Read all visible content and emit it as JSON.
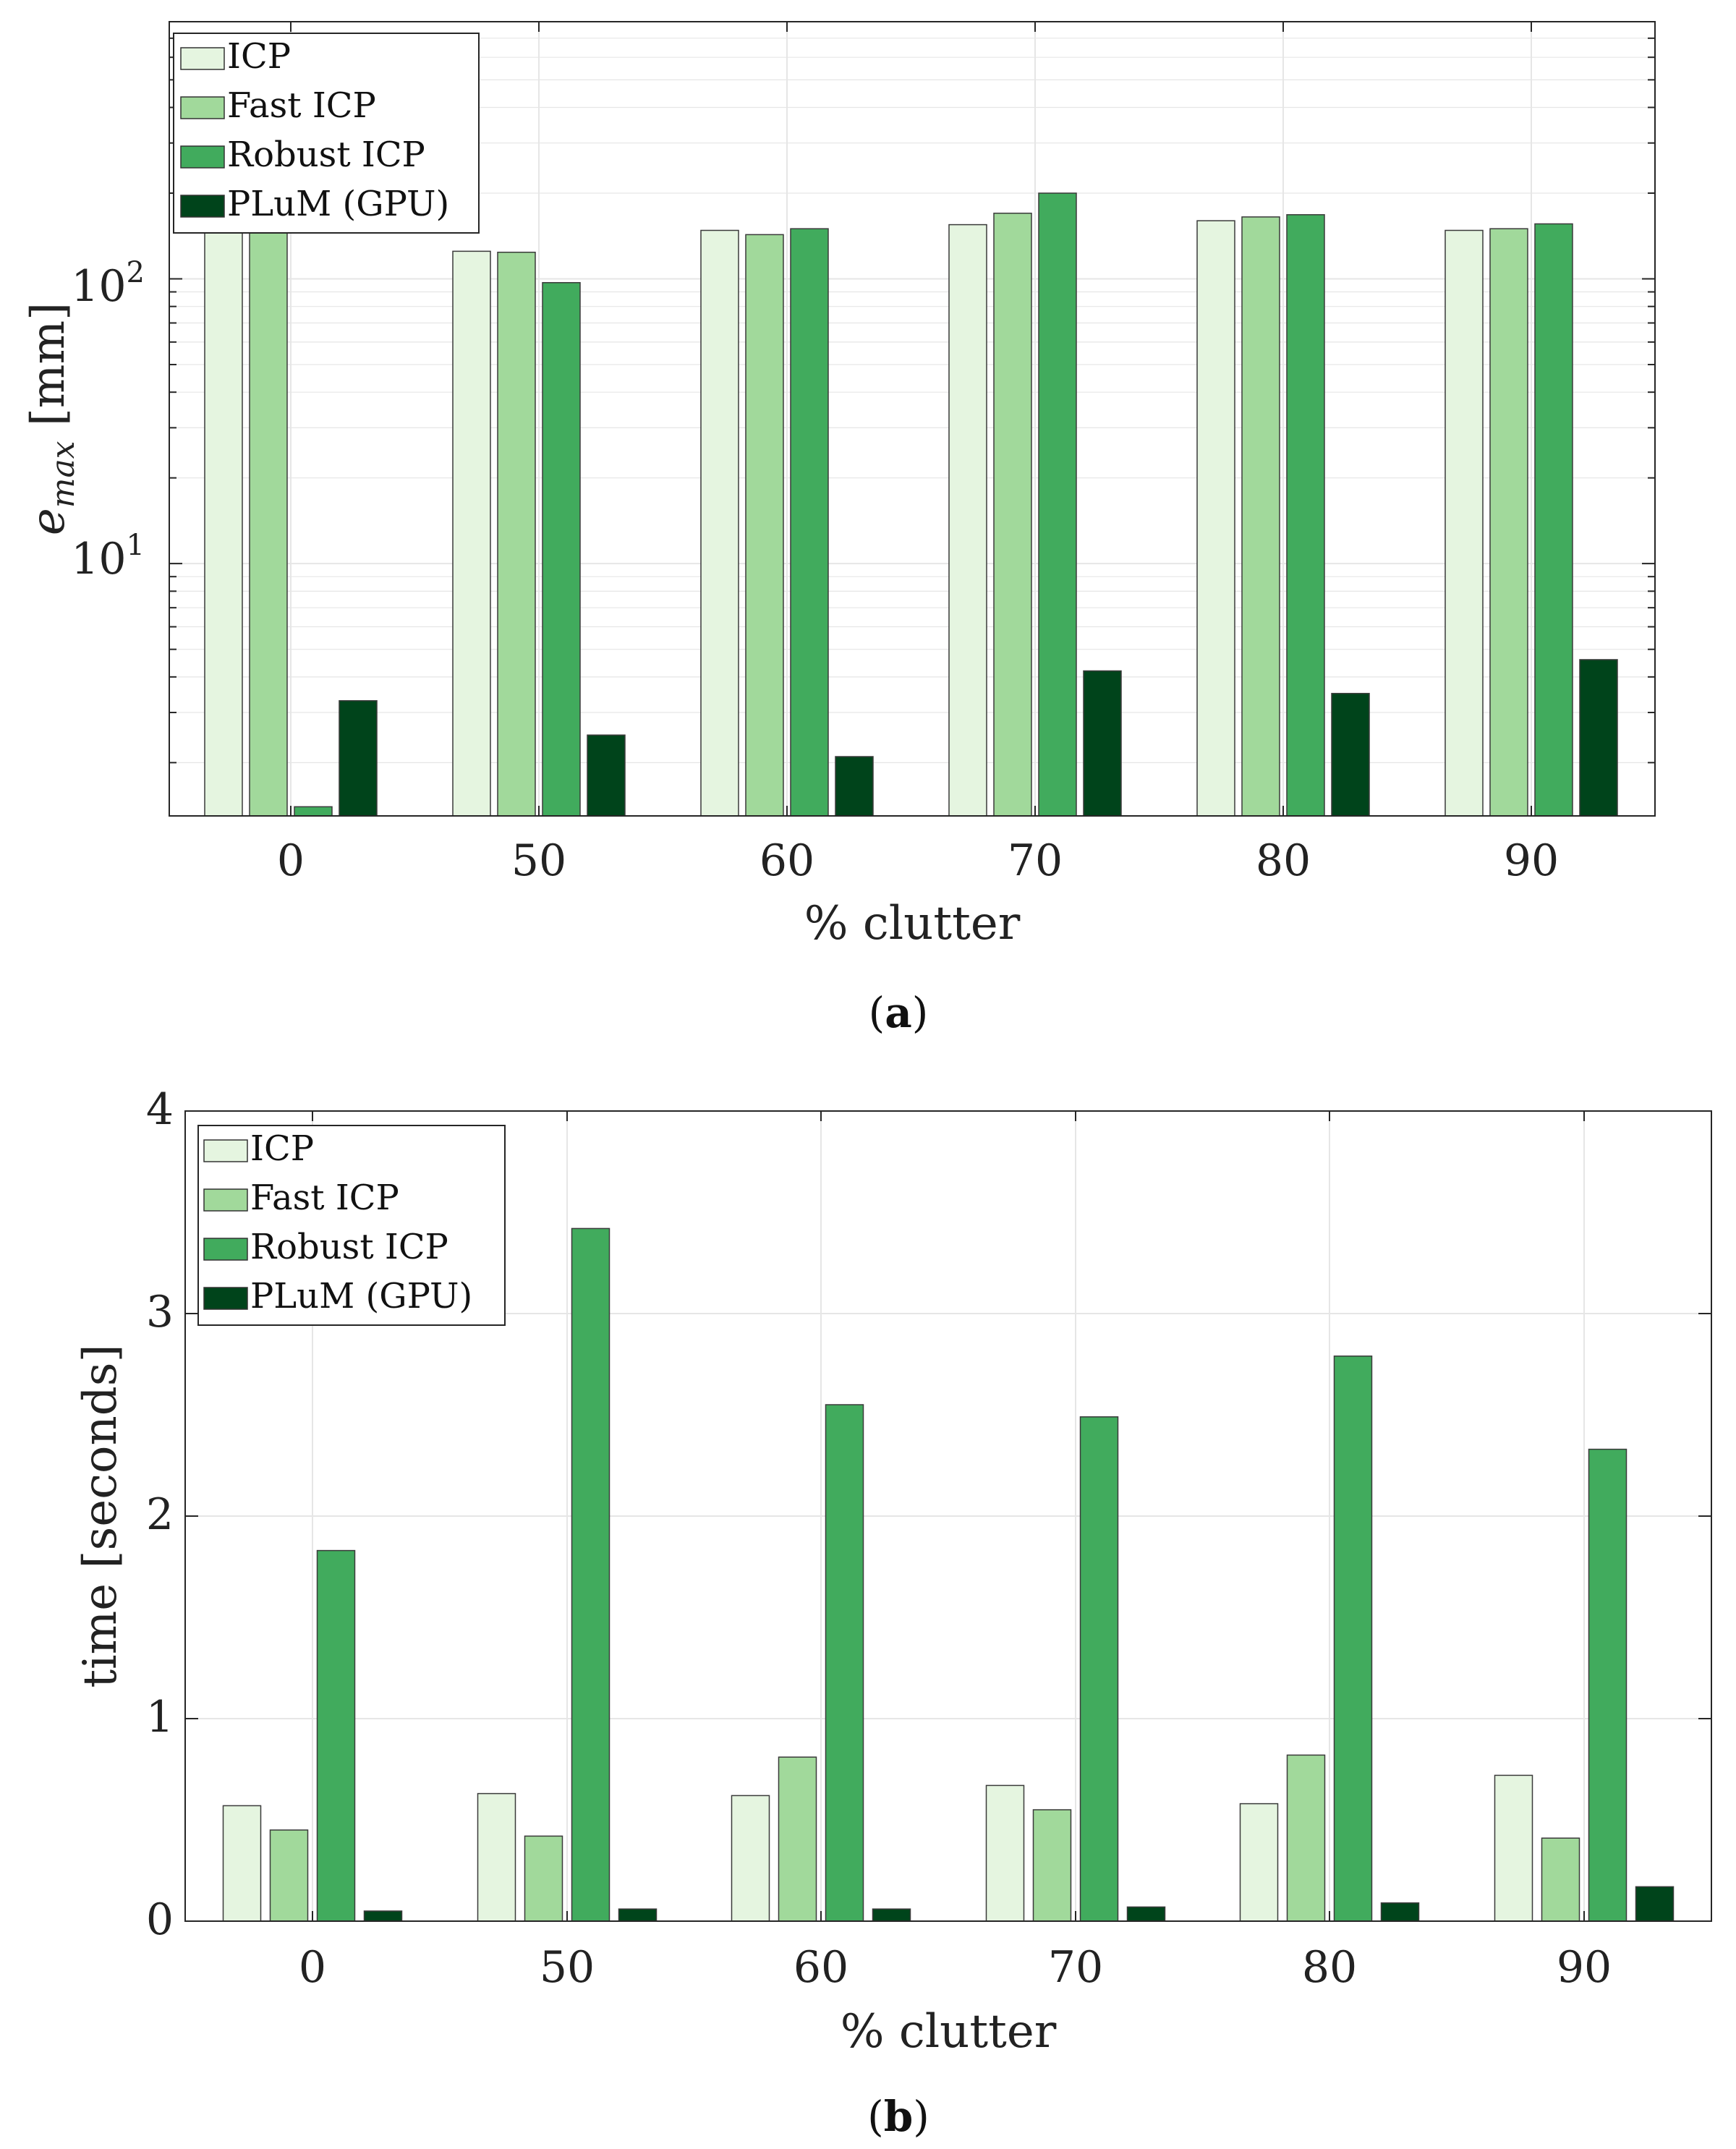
{
  "colors": {
    "ICP": "#e5f5e0",
    "Fast ICP": "#a1d99b",
    "Robust ICP": "#41ab5d",
    "PLuM (GPU)": "#00441b",
    "grid": "#e6e6e6",
    "axis": "#262626"
  },
  "chart_data": [
    {
      "id": "a",
      "type": "bar",
      "scale": "log",
      "caption_label": "a",
      "categories": [
        "0",
        "50",
        "60",
        "70",
        "80",
        "90"
      ],
      "series": [
        {
          "name": "ICP",
          "values": [
            145,
            125,
            148,
            155,
            160,
            148
          ]
        },
        {
          "name": "Fast ICP",
          "values": [
            145,
            124,
            143,
            170,
            165,
            150
          ]
        },
        {
          "name": "Robust ICP",
          "values": [
            1.4,
            97,
            150,
            200,
            168,
            156
          ]
        },
        {
          "name": "PLuM (GPU)",
          "values": [
            3.3,
            2.5,
            2.1,
            4.2,
            3.5,
            4.6
          ]
        }
      ],
      "xlabel": "% clutter",
      "ylabel_base": "e",
      "ylabel_sub": "max",
      "ylabel_unit": "[mm]",
      "ylim": [
        1.3,
        800
      ],
      "ytick_base": "10",
      "yticks": [
        {
          "value": 10,
          "exp": "1"
        },
        {
          "value": 100,
          "exp": "2"
        }
      ],
      "grid": true,
      "legend_position": "top-left"
    },
    {
      "id": "b",
      "type": "bar",
      "scale": "linear",
      "caption_label": "b",
      "categories": [
        "0",
        "50",
        "60",
        "70",
        "80",
        "90"
      ],
      "series": [
        {
          "name": "ICP",
          "values": [
            0.57,
            0.63,
            0.62,
            0.67,
            0.58,
            0.72
          ]
        },
        {
          "name": "Fast ICP",
          "values": [
            0.45,
            0.42,
            0.81,
            0.55,
            0.82,
            0.41
          ]
        },
        {
          "name": "Robust ICP",
          "values": [
            1.83,
            3.42,
            2.55,
            2.49,
            2.79,
            2.33
          ]
        },
        {
          "name": "PLuM (GPU)",
          "values": [
            0.05,
            0.06,
            0.06,
            0.07,
            0.09,
            0.17
          ]
        }
      ],
      "xlabel": "% clutter",
      "ylabel": "time [seconds]",
      "ylim": [
        0,
        4
      ],
      "yticks": [
        "0",
        "1",
        "2",
        "3",
        "4"
      ],
      "grid": true,
      "legend_position": "top-left"
    }
  ]
}
